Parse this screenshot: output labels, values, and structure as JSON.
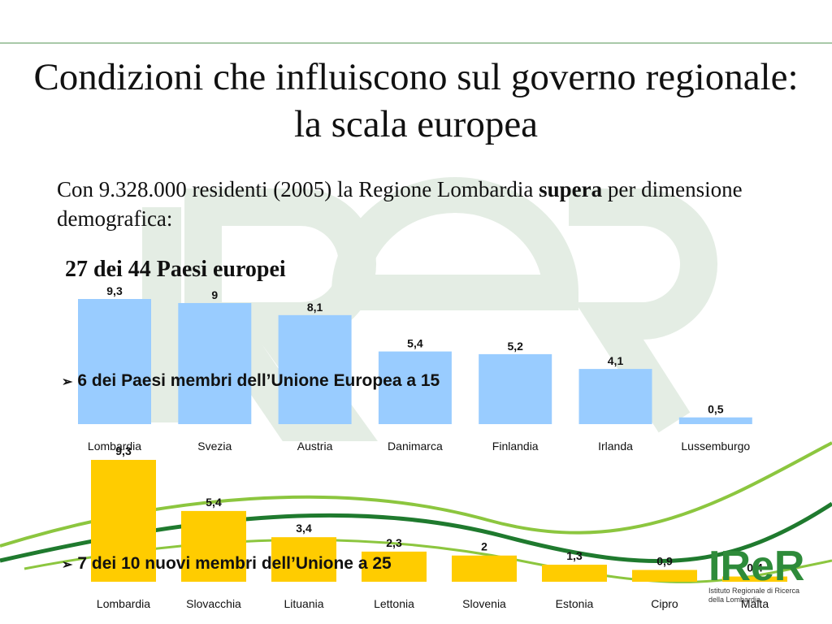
{
  "slide": {
    "title": "Condizioni che influiscono sul governo regionale: la scala europea",
    "intro_before": "Con 9.328.000 residenti (2005) la Regione Lombardia ",
    "intro_bold": "supera",
    "intro_after": " per dimensione demografica:",
    "subtitle": "27 dei 44 Paesi europei",
    "bullet_eu15": "6 dei Paesi membri dell’Unione Europea a 15",
    "bullet_eu25": "7 dei 10 nuovi membri dell’Unione a 25",
    "bullet_marker": "➢"
  },
  "logo": {
    "mark": "IReR",
    "caption": "Istituto Regionale di Ricerca\ndella Lombardia"
  },
  "colors": {
    "eu15_bar": "#99ccff",
    "eu25_bar": "#ffcc00",
    "watermark": "#dfe9df",
    "swoosh_dark": "#1f7a2e",
    "swoosh_light": "#8cc63f",
    "logo_green": "#2e8b3a"
  },
  "chart_data": [
    {
      "type": "bar",
      "name": "eu15",
      "categories": [
        "Lombardia",
        "Svezia",
        "Austria",
        "Danimarca",
        "Finlandia",
        "Irlanda",
        "Lussemburgo"
      ],
      "values": [
        9.3,
        9,
        8.1,
        5.4,
        5.2,
        4.1,
        0.5
      ],
      "value_labels": [
        "9,3",
        "9",
        "8,1",
        "5,4",
        "5,2",
        "4,1",
        "0,5"
      ],
      "ylim": [
        0,
        9.3
      ],
      "grid": false,
      "color": "#99ccff"
    },
    {
      "type": "bar",
      "name": "eu25",
      "categories": [
        "Lombardia",
        "Slovacchia",
        "Lituania",
        "Lettonia",
        "Slovenia",
        "Estonia",
        "Cipro",
        "Malta"
      ],
      "values": [
        9.3,
        5.4,
        3.4,
        2.3,
        2,
        1.3,
        0.9,
        0.4
      ],
      "value_labels": [
        "9,3",
        "5,4",
        "3,4",
        "2,3",
        "2",
        "1,3",
        "0,9",
        "0,4"
      ],
      "ylim": [
        0,
        9.3
      ],
      "grid": false,
      "color": "#ffcc00"
    }
  ]
}
